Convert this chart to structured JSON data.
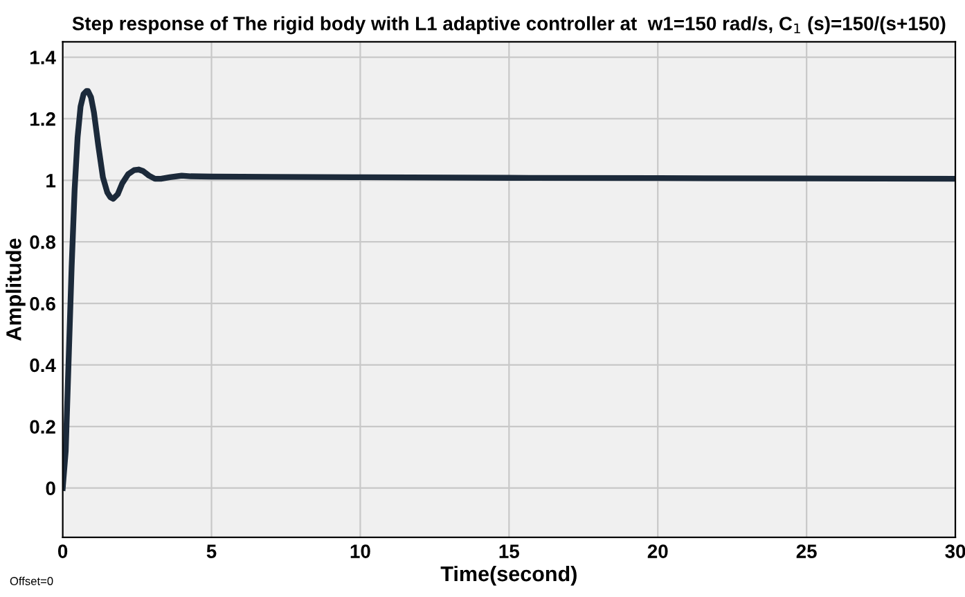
{
  "chart_data": {
    "type": "line",
    "title": "Step response of The rigid body with L1 adaptive controller at  w1=150 rad/s, C$_{1}$ (s)=150/(s+150)",
    "xlabel": "Time(second)",
    "ylabel": "Amplitude",
    "annotations": [
      "Offset=0"
    ],
    "series": [
      {
        "color": "#1c2a3a",
        "x": [
          0,
          0.1,
          0.2,
          0.3,
          0.4,
          0.5,
          0.6,
          0.7,
          0.8,
          0.85,
          0.95,
          1.05,
          1.2,
          1.35,
          1.5,
          1.6,
          1.7,
          1.85,
          2.0,
          2.2,
          2.4,
          2.55,
          2.7,
          2.9,
          3.1,
          3.3,
          3.6,
          4.0,
          4.3,
          5,
          7,
          10,
          15,
          20,
          25,
          30
        ],
        "values": [
          0,
          0.12,
          0.42,
          0.72,
          0.97,
          1.14,
          1.24,
          1.28,
          1.29,
          1.29,
          1.27,
          1.22,
          1.11,
          1.01,
          0.96,
          0.945,
          0.94,
          0.955,
          0.99,
          1.02,
          1.033,
          1.035,
          1.03,
          1.015,
          1.005,
          1.005,
          1.01,
          1.015,
          1.013,
          1.012,
          1.011,
          1.01,
          1.008,
          1.007,
          1.006,
          1.005
        ]
      }
    ],
    "xlim": [
      0,
      30
    ],
    "ylim": [
      -0.16,
      1.45
    ],
    "xticks": [
      0,
      5,
      10,
      15,
      20,
      25,
      30
    ],
    "yticks": [
      0,
      0.2,
      0.4,
      0.6,
      0.8,
      1,
      1.2,
      1.4
    ],
    "grid": true,
    "line_style": "solid",
    "marker": "none"
  }
}
